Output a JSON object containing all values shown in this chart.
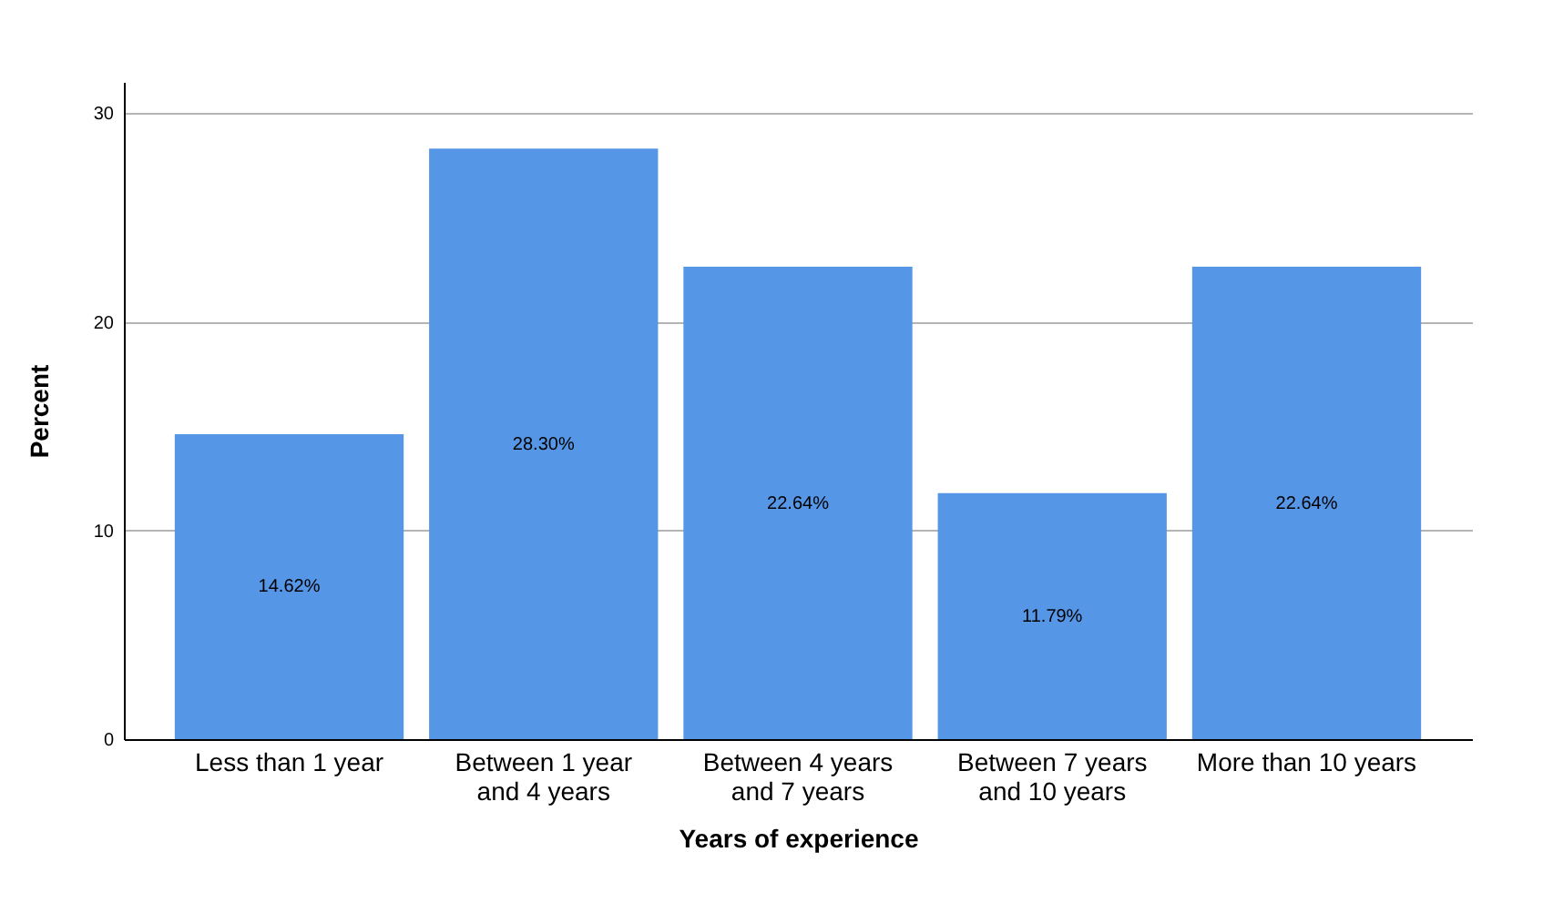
{
  "chart_data": {
    "type": "bar",
    "xlabel": "Years of experience",
    "ylabel": "Percent",
    "categories": [
      "Less than 1 year",
      "Between 1 year and 4 years",
      "Between 4 years and 7 years",
      "Between 7 years and 10 years",
      "More than 10 years"
    ],
    "values": [
      14.62,
      28.3,
      22.64,
      11.79,
      22.64
    ],
    "value_labels": [
      "14.62%",
      "28.30%",
      "22.64%",
      "11.79%",
      "22.64%"
    ],
    "color": "#5596e6",
    "ylim": [
      0,
      31.5
    ],
    "yticks": [
      0,
      10,
      20,
      30
    ],
    "grid": "y"
  }
}
